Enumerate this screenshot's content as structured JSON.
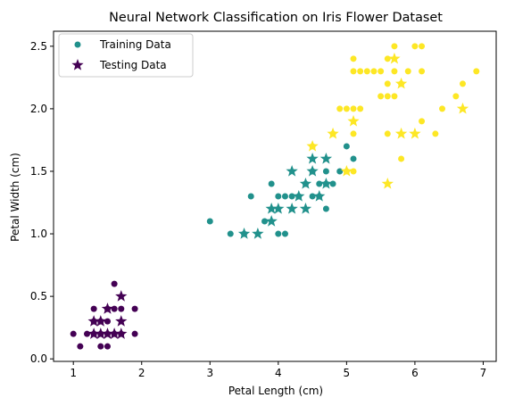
{
  "chart_data": {
    "type": "scatter",
    "title": "Neural Network Classification on Iris Flower Dataset",
    "xlabel": "Petal Length (cm)",
    "ylabel": "Petal Width (cm)",
    "xlim": [
      0.71,
      7.19
    ],
    "ylim": [
      -0.02,
      2.62
    ],
    "xticks": [
      1,
      2,
      3,
      4,
      5,
      6,
      7
    ],
    "yticks": [
      0.0,
      0.5,
      1.0,
      1.5,
      2.0,
      2.5
    ],
    "xtick_labels": [
      "1",
      "2",
      "3",
      "4",
      "5",
      "6",
      "7"
    ],
    "ytick_labels": [
      "0.0",
      "0.5",
      "1.0",
      "1.5",
      "2.0",
      "2.5"
    ],
    "grid": false,
    "legend": {
      "position": "top-left",
      "entries": [
        {
          "label": "Training Data",
          "marker": "circle",
          "color": "#21918c"
        },
        {
          "label": "Testing Data",
          "marker": "star",
          "color": "#440154"
        }
      ]
    },
    "class_colors": [
      "#440154",
      "#21918c",
      "#fde725"
    ],
    "series": [
      {
        "name": "Training Data",
        "marker": "circle",
        "points": [
          [
            1.0,
            0.2,
            0
          ],
          [
            1.1,
            0.1,
            0
          ],
          [
            1.2,
            0.2,
            0
          ],
          [
            1.3,
            0.2,
            0
          ],
          [
            1.3,
            0.3,
            0
          ],
          [
            1.3,
            0.4,
            0
          ],
          [
            1.4,
            0.1,
            0
          ],
          [
            1.4,
            0.2,
            0
          ],
          [
            1.4,
            0.3,
            0
          ],
          [
            1.5,
            0.1,
            0
          ],
          [
            1.5,
            0.2,
            0
          ],
          [
            1.5,
            0.3,
            0
          ],
          [
            1.5,
            0.4,
            0
          ],
          [
            1.6,
            0.2,
            0
          ],
          [
            1.6,
            0.4,
            0
          ],
          [
            1.6,
            0.6,
            0
          ],
          [
            1.7,
            0.2,
            0
          ],
          [
            1.7,
            0.4,
            0
          ],
          [
            1.9,
            0.2,
            0
          ],
          [
            1.9,
            0.4,
            0
          ],
          [
            3.0,
            1.1,
            1
          ],
          [
            3.3,
            1.0,
            1
          ],
          [
            3.5,
            1.0,
            1
          ],
          [
            3.6,
            1.3,
            1
          ],
          [
            3.8,
            1.1,
            1
          ],
          [
            3.9,
            1.4,
            1
          ],
          [
            4.0,
            1.0,
            1
          ],
          [
            4.0,
            1.3,
            1
          ],
          [
            4.1,
            1.0,
            1
          ],
          [
            4.1,
            1.3,
            1
          ],
          [
            4.2,
            1.3,
            1
          ],
          [
            4.3,
            1.3,
            1
          ],
          [
            4.4,
            1.4,
            1
          ],
          [
            4.5,
            1.3,
            1
          ],
          [
            4.5,
            1.5,
            1
          ],
          [
            4.6,
            1.3,
            1
          ],
          [
            4.6,
            1.4,
            1
          ],
          [
            4.7,
            1.2,
            1
          ],
          [
            4.7,
            1.4,
            1
          ],
          [
            4.7,
            1.5,
            1
          ],
          [
            4.8,
            1.4,
            1
          ],
          [
            4.9,
            1.5,
            1
          ],
          [
            5.0,
            1.7,
            1
          ],
          [
            5.1,
            1.6,
            1
          ],
          [
            4.5,
            1.7,
            2
          ],
          [
            4.8,
            1.8,
            2
          ],
          [
            4.9,
            2.0,
            2
          ],
          [
            5.0,
            2.0,
            2
          ],
          [
            5.0,
            1.5,
            2
          ],
          [
            5.1,
            1.5,
            2
          ],
          [
            5.1,
            1.8,
            2
          ],
          [
            5.1,
            2.0,
            2
          ],
          [
            5.1,
            2.3,
            2
          ],
          [
            5.1,
            2.4,
            2
          ],
          [
            5.2,
            2.0,
            2
          ],
          [
            5.2,
            2.3,
            2
          ],
          [
            5.3,
            2.3,
            2
          ],
          [
            5.4,
            2.3,
            2
          ],
          [
            5.5,
            2.1,
            2
          ],
          [
            5.5,
            2.3,
            2
          ],
          [
            5.6,
            1.8,
            2
          ],
          [
            5.6,
            2.1,
            2
          ],
          [
            5.6,
            2.2,
            2
          ],
          [
            5.6,
            2.4,
            2
          ],
          [
            5.7,
            2.1,
            2
          ],
          [
            5.7,
            2.3,
            2
          ],
          [
            5.7,
            2.5,
            2
          ],
          [
            5.8,
            1.6,
            2
          ],
          [
            5.8,
            2.2,
            2
          ],
          [
            5.9,
            2.3,
            2
          ],
          [
            6.0,
            2.5,
            2
          ],
          [
            6.1,
            2.3,
            2
          ],
          [
            6.1,
            2.5,
            2
          ],
          [
            6.1,
            1.9,
            2
          ],
          [
            6.3,
            1.8,
            2
          ],
          [
            6.4,
            2.0,
            2
          ],
          [
            6.6,
            2.1,
            2
          ],
          [
            6.7,
            2.2,
            2
          ],
          [
            6.9,
            2.3,
            2
          ]
        ]
      },
      {
        "name": "Testing Data",
        "marker": "star",
        "points": [
          [
            1.3,
            0.2,
            0
          ],
          [
            1.3,
            0.3,
            0
          ],
          [
            1.4,
            0.2,
            0
          ],
          [
            1.4,
            0.3,
            0
          ],
          [
            1.5,
            0.2,
            0
          ],
          [
            1.5,
            0.4,
            0
          ],
          [
            1.6,
            0.2,
            0
          ],
          [
            1.7,
            0.2,
            0
          ],
          [
            1.7,
            0.3,
            0
          ],
          [
            1.7,
            0.5,
            0
          ],
          [
            3.5,
            1.0,
            1
          ],
          [
            3.7,
            1.0,
            1
          ],
          [
            3.9,
            1.1,
            1
          ],
          [
            3.9,
            1.2,
            1
          ],
          [
            4.0,
            1.2,
            1
          ],
          [
            4.2,
            1.2,
            1
          ],
          [
            4.2,
            1.5,
            1
          ],
          [
            4.3,
            1.3,
            1
          ],
          [
            4.4,
            1.2,
            1
          ],
          [
            4.4,
            1.4,
            1
          ],
          [
            4.5,
            1.5,
            1
          ],
          [
            4.5,
            1.6,
            1
          ],
          [
            4.6,
            1.3,
            1
          ],
          [
            4.7,
            1.4,
            1
          ],
          [
            4.7,
            1.6,
            1
          ],
          [
            4.5,
            1.7,
            2
          ],
          [
            4.8,
            1.8,
            2
          ],
          [
            5.0,
            1.5,
            2
          ],
          [
            5.1,
            1.9,
            2
          ],
          [
            5.6,
            1.4,
            2
          ],
          [
            5.7,
            2.4,
            2
          ],
          [
            5.8,
            2.2,
            2
          ],
          [
            5.8,
            1.8,
            2
          ],
          [
            6.0,
            1.8,
            2
          ],
          [
            6.7,
            2.0,
            2
          ]
        ]
      }
    ]
  }
}
